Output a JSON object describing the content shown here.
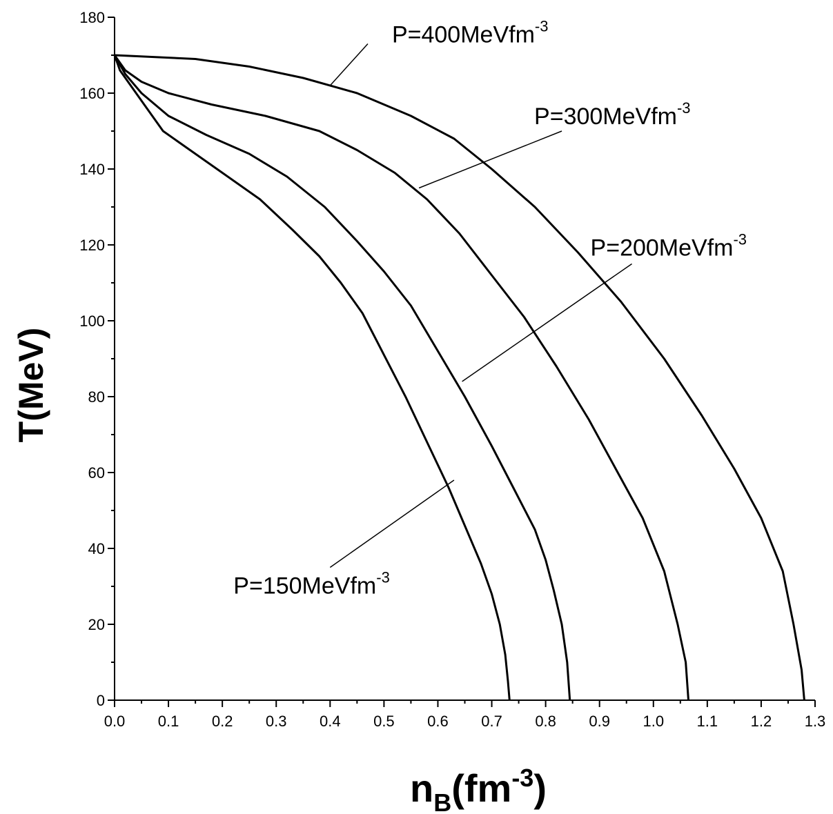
{
  "chart_data": {
    "type": "line",
    "title": "",
    "xlabel": {
      "base": "n",
      "sub": "B",
      "paren_open": "(fm",
      "sup": "-3",
      "paren_close": ")"
    },
    "ylabel": "T(MeV)",
    "xlim": [
      0.0,
      1.3
    ],
    "ylim": [
      0,
      180
    ],
    "x_ticks": [
      "0.0",
      "0.1",
      "0.2",
      "0.3",
      "0.4",
      "0.5",
      "0.6",
      "0.7",
      "0.8",
      "0.9",
      "1.0",
      "1.1",
      "1.2",
      "1.3"
    ],
    "y_ticks": [
      "0",
      "20",
      "40",
      "60",
      "80",
      "100",
      "120",
      "140",
      "160",
      "180"
    ],
    "grid": false,
    "legend": "none",
    "line_color": "#000000",
    "series": [
      {
        "x": [
          0.0,
          0.01,
          0.03,
          0.06,
          0.09,
          0.14,
          0.2,
          0.27,
          0.33,
          0.38,
          0.42,
          0.46,
          0.5,
          0.54,
          0.58,
          0.62,
          0.65,
          0.68,
          0.7,
          0.715,
          0.725,
          0.73,
          0.733
        ],
        "y": [
          170,
          166,
          162,
          156,
          150,
          145,
          139,
          132,
          124,
          117,
          110,
          102,
          91,
          80,
          68,
          56,
          46,
          36,
          28,
          20,
          12,
          5,
          0
        ]
      },
      {
        "x": [
          0.0,
          0.02,
          0.05,
          0.1,
          0.17,
          0.25,
          0.32,
          0.39,
          0.45,
          0.5,
          0.55,
          0.6,
          0.65,
          0.7,
          0.74,
          0.78,
          0.8,
          0.815,
          0.83,
          0.84,
          0.845
        ],
        "y": [
          170,
          165,
          160,
          154,
          149,
          144,
          138,
          130,
          121,
          113,
          104,
          92,
          80,
          67,
          56,
          45,
          37,
          29,
          20,
          10,
          0
        ]
      },
      {
        "x": [
          0.0,
          0.02,
          0.05,
          0.1,
          0.18,
          0.28,
          0.38,
          0.45,
          0.52,
          0.58,
          0.64,
          0.7,
          0.76,
          0.82,
          0.88,
          0.93,
          0.98,
          1.02,
          1.045,
          1.06,
          1.065
        ],
        "y": [
          170,
          166,
          163,
          160,
          157,
          154,
          150,
          145,
          139,
          132,
          123,
          112,
          101,
          88,
          74,
          61,
          48,
          34,
          20,
          10,
          0
        ]
      },
      {
        "x": [
          0.0,
          0.15,
          0.25,
          0.35,
          0.45,
          0.55,
          0.63,
          0.7,
          0.78,
          0.86,
          0.94,
          1.02,
          1.09,
          1.15,
          1.2,
          1.24,
          1.26,
          1.275,
          1.28
        ],
        "y": [
          170,
          169,
          167,
          164,
          160,
          154,
          148,
          140,
          130,
          118,
          105,
          90,
          75,
          61,
          48,
          34,
          20,
          8,
          0
        ]
      }
    ],
    "annotations": [
      {
        "text": "P=150MeVfm",
        "sup": "-3",
        "point": [
          0.63,
          58
        ],
        "text_anchor": [
          0.4,
          35
        ]
      },
      {
        "text": "P=200MeVfm",
        "sup": "-3",
        "point": [
          0.645,
          84
        ],
        "text_anchor": [
          0.96,
          115
        ]
      },
      {
        "text": "P=300MeVfm",
        "sup": "-3",
        "point": [
          0.565,
          135
        ],
        "text_anchor": [
          0.83,
          150
        ]
      },
      {
        "text": "P=400MeVfm",
        "sup": "-3",
        "point": [
          0.4,
          162
        ],
        "text_anchor": [
          0.47,
          173
        ]
      }
    ]
  }
}
